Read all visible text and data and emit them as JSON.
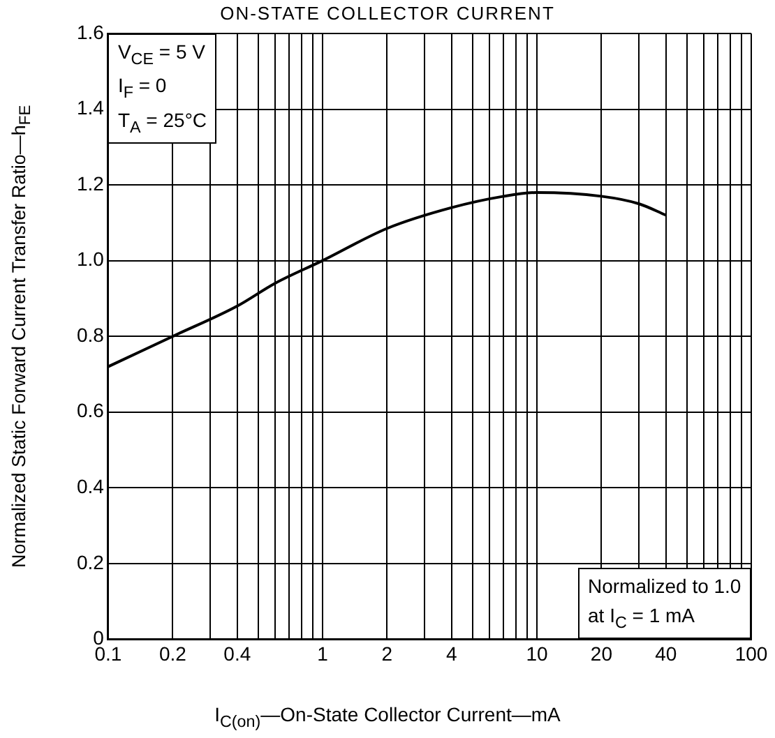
{
  "chart_data": {
    "type": "line",
    "title": "ON-STATE COLLECTOR CURRENT",
    "xlabel": "I$_{C(on)}$—On-State Collector Current—mA",
    "ylabel": "Normalized Static Forward Current Transfer Ratio—h$_{FE}$",
    "x": [
      0.1,
      0.2,
      0.4,
      0.6,
      1,
      2,
      4,
      7,
      10,
      20,
      30,
      40
    ],
    "series": [
      {
        "color": "#000000",
        "values": [
          0.72,
          0.8,
          0.88,
          0.94,
          1.0,
          1.085,
          1.14,
          1.17,
          1.18,
          1.17,
          1.15,
          1.12
        ]
      }
    ],
    "log": "x",
    "xlim": [
      0.1,
      100
    ],
    "xticks": [
      0.1,
      0.2,
      {
        "value": 0.3,
        "label": null
      },
      0.4,
      {
        "value": 0.5,
        "label": null
      },
      {
        "value": 0.6,
        "label": null
      },
      {
        "value": 0.7,
        "label": null
      },
      {
        "value": 0.8,
        "label": null
      },
      {
        "value": 0.9,
        "label": null
      },
      1,
      2,
      {
        "value": 3,
        "label": null
      },
      4,
      {
        "value": 5,
        "label": null
      },
      {
        "value": 6,
        "label": null
      },
      {
        "value": 7,
        "label": null
      },
      {
        "value": 8,
        "label": null
      },
      {
        "value": 9,
        "label": null
      },
      10,
      20,
      {
        "value": 30,
        "label": null
      },
      40,
      {
        "value": 50,
        "label": null
      },
      {
        "value": 60,
        "label": null
      },
      {
        "value": 70,
        "label": null
      },
      {
        "value": 80,
        "label": null
      },
      {
        "value": 90,
        "label": null
      },
      100
    ],
    "ylim": [
      0,
      1.6
    ],
    "yticks": [
      0,
      {
        "value": 0.2,
        "label": "0.2"
      },
      {
        "value": 0.4,
        "label": "0.4"
      },
      {
        "value": 0.6,
        "label": "0.6"
      },
      {
        "value": 0.8,
        "label": "0.8"
      },
      {
        "value": 1.0,
        "label": "1.0"
      },
      {
        "value": 1.2,
        "label": "1.2"
      },
      {
        "value": 1.4,
        "label": "1.4"
      },
      1.6
    ],
    "grid": true,
    "line_style": "solid",
    "marker": "none",
    "annotations": [
      "V$_{CE}$ = 5 V\nI$_{F}$ = 0\nT$_{A}$ = 25°C",
      "Normalized to 1.0\nat I$_{C}$ = 1 mA"
    ]
  }
}
